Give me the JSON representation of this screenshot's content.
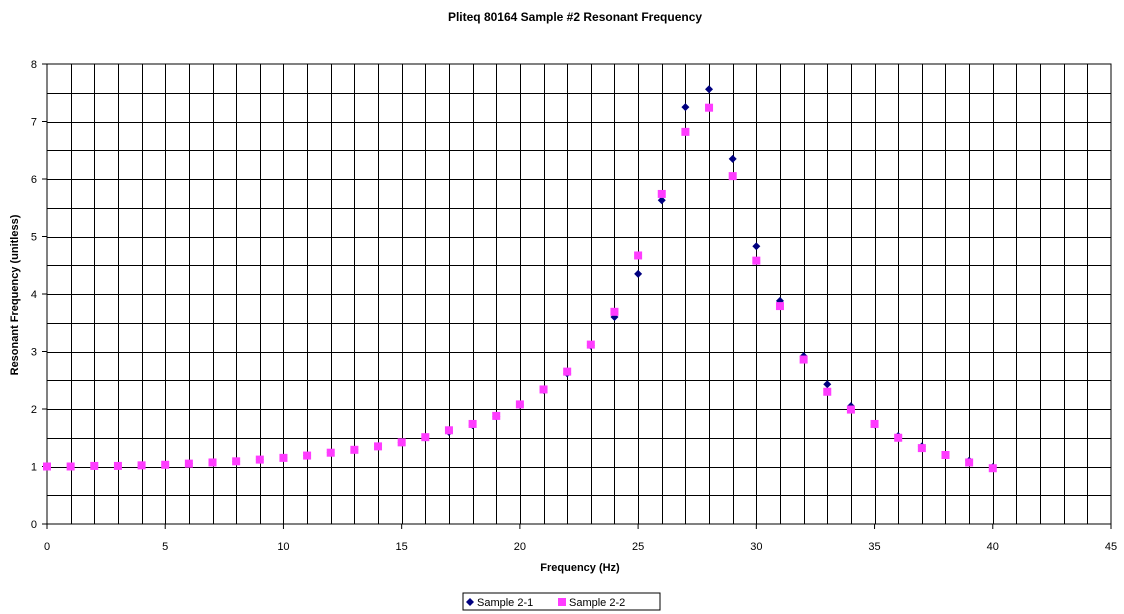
{
  "chart_data": {
    "type": "scatter",
    "title": "Pliteq 80164 Sample #2 Resonant Frequency",
    "xlabel": "Frequency (Hz)",
    "ylabel": "Resonant Frequency (unitless)",
    "xlim": [
      0,
      45
    ],
    "ylim": [
      0,
      8
    ],
    "x_ticks": [
      0,
      5,
      10,
      15,
      20,
      25,
      30,
      35,
      40,
      45
    ],
    "y_ticks": [
      0,
      1,
      2,
      3,
      4,
      5,
      6,
      7,
      8
    ],
    "x_minor_step": 1,
    "y_minor_step": 0.5,
    "grid": true,
    "legend_position": "bottom-center",
    "series": [
      {
        "name": "Sample 2-1",
        "marker": "diamond",
        "color": "#000080",
        "x": [
          0,
          1,
          2,
          3,
          4,
          5,
          6,
          7,
          8,
          9,
          10,
          11,
          12,
          13,
          14,
          15,
          16,
          17,
          18,
          19,
          20,
          21,
          22,
          23,
          24,
          25,
          26,
          27,
          28,
          29,
          30,
          31,
          32,
          33,
          34,
          35,
          36,
          37,
          38,
          39,
          40
        ],
        "y": [
          1.0,
          1.0,
          1.01,
          1.01,
          1.02,
          1.03,
          1.05,
          1.07,
          1.09,
          1.12,
          1.15,
          1.19,
          1.24,
          1.29,
          1.35,
          1.42,
          1.5,
          1.6,
          1.72,
          1.87,
          2.07,
          2.33,
          2.62,
          3.1,
          3.6,
          4.35,
          5.63,
          7.25,
          7.56,
          6.35,
          4.83,
          3.88,
          2.92,
          2.43,
          2.05,
          1.73,
          1.53,
          1.35,
          1.2,
          1.1,
          0.99
        ]
      },
      {
        "name": "Sample 2-2",
        "marker": "square",
        "color": "#ff3cff",
        "x": [
          0,
          1,
          2,
          3,
          4,
          5,
          6,
          7,
          8,
          9,
          10,
          11,
          12,
          13,
          14,
          15,
          16,
          17,
          18,
          19,
          20,
          21,
          22,
          23,
          24,
          25,
          26,
          27,
          28,
          29,
          30,
          31,
          32,
          33,
          34,
          35,
          36,
          37,
          38,
          39,
          40
        ],
        "y": [
          1.0,
          1.0,
          1.01,
          1.01,
          1.02,
          1.03,
          1.05,
          1.07,
          1.09,
          1.12,
          1.15,
          1.19,
          1.24,
          1.29,
          1.35,
          1.42,
          1.51,
          1.63,
          1.74,
          1.88,
          2.08,
          2.34,
          2.65,
          3.12,
          3.69,
          4.67,
          5.74,
          6.82,
          7.24,
          6.05,
          4.58,
          3.79,
          2.86,
          2.3,
          1.99,
          1.74,
          1.5,
          1.32,
          1.2,
          1.07,
          0.97
        ]
      }
    ]
  }
}
